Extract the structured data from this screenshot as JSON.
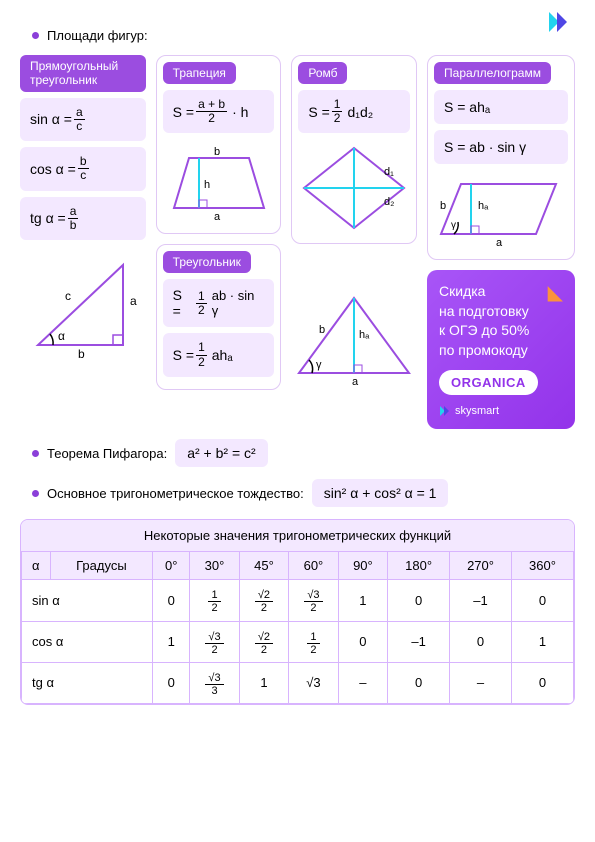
{
  "colors": {
    "purple_primary": "#9b4de0",
    "purple_light": "#f3e8ff",
    "border": "#e0c8f5",
    "table_border": "#d8b4fe",
    "orange": "#fb923c",
    "cyan": "#22d3ee",
    "diagram_stroke": "#9b4de0"
  },
  "header": {
    "areas_title": "Площади фигур:"
  },
  "cards": {
    "right_triangle": {
      "title": "Прямоугольный треугольник",
      "formulas": {
        "sin": {
          "lhs": "sin α =",
          "num": "a",
          "den": "c"
        },
        "cos": {
          "lhs": "cos α =",
          "num": "b",
          "den": "c"
        },
        "tg": {
          "lhs": "tg α =",
          "num": "a",
          "den": "b"
        }
      },
      "labels": {
        "a": "a",
        "b": "b",
        "c": "c",
        "alpha": "α"
      }
    },
    "trapezoid": {
      "title": "Трапеция",
      "formula": {
        "lhs": "S =",
        "num": "a + b",
        "den": "2",
        "suffix": "· h"
      },
      "labels": {
        "a": "a",
        "b": "b",
        "h": "h"
      }
    },
    "rhombus": {
      "title": "Ромб",
      "formula": {
        "lhs": "S =",
        "num": "1",
        "den": "2",
        "suffix": "d₁d₂"
      },
      "labels": {
        "d1": "d₁",
        "d2": "d₂"
      }
    },
    "parallelogram": {
      "title": "Параллелограмм",
      "formula1": "S = ahₐ",
      "formula2": "S = ab · sin γ",
      "labels": {
        "a": "a",
        "b": "b",
        "ha": "hₐ",
        "gamma": "γ"
      }
    },
    "triangle": {
      "title": "Треугольник",
      "formula1": {
        "lhs": "S =",
        "num": "1",
        "den": "2",
        "suffix": "ab · sin γ"
      },
      "formula2": {
        "lhs": "S =",
        "num": "1",
        "den": "2",
        "suffix": "ahₐ"
      },
      "labels": {
        "a": "a",
        "b": "b",
        "ha": "hₐ",
        "gamma": "γ"
      }
    }
  },
  "promo": {
    "line1": "Скидка",
    "line2": "на подготовку",
    "line3": "к ОГЭ до 50%",
    "line4": "по промокоду",
    "code": "ORGANICA",
    "brand": "skysmart"
  },
  "theorems": {
    "pythagoras_label": "Теорема Пифагора:",
    "pythagoras_formula": "a² + b² = c²",
    "trig_identity_label": "Основное тригонометрическое тождество:",
    "trig_identity_formula": "sin² α + cos² α = 1"
  },
  "table": {
    "title": "Некоторые значения тригонометрических функций",
    "col_alpha": "α",
    "col_degrees": "Градусы",
    "degrees": [
      "0°",
      "30°",
      "45°",
      "60°",
      "90°",
      "180°",
      "270°",
      "360°"
    ],
    "rows": {
      "sin": {
        "label": "sin α",
        "values": [
          "0",
          "frac:1:2",
          "frac:√2:2",
          "frac:√3:2",
          "1",
          "0",
          "–1",
          "0"
        ]
      },
      "cos": {
        "label": "cos α",
        "values": [
          "1",
          "frac:√3:2",
          "frac:√2:2",
          "frac:1:2",
          "0",
          "–1",
          "0",
          "1"
        ]
      },
      "tg": {
        "label": "tg α",
        "values": [
          "0",
          "frac:√3:3",
          "1",
          "√3",
          "–",
          "0",
          "–",
          "0"
        ]
      }
    }
  }
}
